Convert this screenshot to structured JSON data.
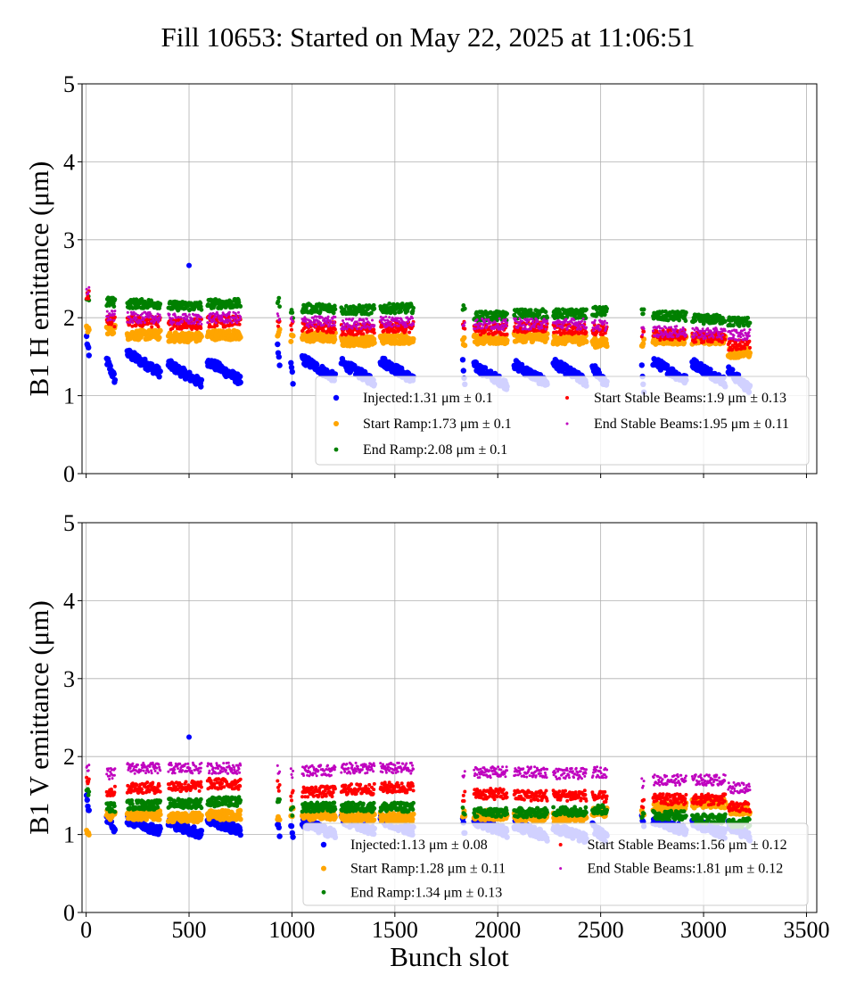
{
  "title": "Fill 10653: Started on May 22, 2025 at 11:06:51",
  "chart_data": [
    {
      "type": "scatter",
      "ylabel": "B1 H emittance (μm)",
      "xlabel": "",
      "xlim": [
        -20,
        3550
      ],
      "ylim": [
        0,
        5
      ],
      "xticks": [
        0,
        500,
        1000,
        1500,
        2000,
        2500,
        3000,
        3500
      ],
      "yticks": [
        0,
        1,
        2,
        3,
        4,
        5
      ],
      "grid": true,
      "legend_position": "lower-right",
      "series": [
        {
          "name": "Injected",
          "label": "Injected:1.31 μm ± 0.1",
          "color": "#0000ff",
          "values_by_train": [
            1.62,
            1.33,
            1.42,
            1.28,
            1.32,
            1.48,
            1.3,
            1.35,
            1.3,
            1.33,
            1.28,
            1.26,
            1.28,
            1.3,
            1.25,
            1.22,
            1.32,
            1.3,
            1.2
          ]
        },
        {
          "name": "Start Ramp",
          "label": "Start Ramp:1.73 μm ± 0.1",
          "color": "#ffa500",
          "values_by_train": [
            1.85,
            1.85,
            1.78,
            1.75,
            1.78,
            1.8,
            1.72,
            1.75,
            1.7,
            1.73,
            1.7,
            1.72,
            1.75,
            1.72,
            1.68,
            1.68,
            1.72,
            1.72,
            1.55
          ]
        },
        {
          "name": "End Ramp",
          "label": "End Ramp:2.08 μm ± 0.1",
          "color": "#008000",
          "values_by_train": [
            2.25,
            2.2,
            2.18,
            2.15,
            2.18,
            2.2,
            2.05,
            2.12,
            2.1,
            2.12,
            2.1,
            2.02,
            2.05,
            2.05,
            2.08,
            2.1,
            2.02,
            1.98,
            1.95
          ]
        },
        {
          "name": "Start Stable Beams",
          "label": "Start Stable Beams:1.9 μm ± 0.13",
          "color": "#ff0000",
          "values_by_train": [
            2.3,
            1.95,
            1.95,
            1.92,
            1.95,
            1.95,
            1.88,
            1.88,
            1.85,
            1.88,
            1.88,
            1.85,
            1.88,
            1.85,
            1.85,
            1.8,
            1.78,
            1.75,
            1.65
          ]
        },
        {
          "name": "End Stable Beams",
          "label": "End Stable Beams:1.95 μm ± 0.11",
          "color": "#bf00bf",
          "values_by_train": [
            2.35,
            2.02,
            2.0,
            1.98,
            2.0,
            2.0,
            1.95,
            1.95,
            1.92,
            1.95,
            1.95,
            1.92,
            1.92,
            1.92,
            1.9,
            1.85,
            1.82,
            1.8,
            1.78
          ]
        }
      ]
    },
    {
      "type": "scatter",
      "ylabel": "B1 V emittance (μm)",
      "xlabel": "Bunch slot",
      "xlim": [
        -20,
        3550
      ],
      "ylim": [
        0,
        5
      ],
      "xticks": [
        0,
        500,
        1000,
        1500,
        2000,
        2500,
        3000,
        3500
      ],
      "yticks": [
        0,
        1,
        2,
        3,
        4,
        5
      ],
      "grid": true,
      "legend_position": "lower-right",
      "series": [
        {
          "name": "Injected",
          "label": "Injected:1.13 μm ± 0.08",
          "color": "#0000ff",
          "values_by_train": [
            1.4,
            1.15,
            1.12,
            1.08,
            1.12,
            1.1,
            1.05,
            1.08,
            1.12,
            1.12,
            1.1,
            1.1,
            1.05,
            1.02,
            1.02,
            1.15,
            1.12,
            1.08,
            1.05
          ]
        },
        {
          "name": "Start Ramp",
          "label": "Start Ramp:1.28 μm ± 0.11",
          "color": "#ffa500",
          "values_by_train": [
            1.05,
            1.25,
            1.25,
            1.22,
            1.25,
            1.22,
            1.28,
            1.25,
            1.22,
            1.22,
            1.28,
            1.25,
            1.22,
            1.22,
            1.28,
            1.3,
            1.35,
            1.4,
            1.32
          ]
        },
        {
          "name": "End Ramp",
          "label": "End Ramp:1.34 μm ± 0.13",
          "color": "#008000",
          "values_by_train": [
            1.55,
            1.35,
            1.38,
            1.4,
            1.42,
            1.4,
            1.3,
            1.35,
            1.35,
            1.35,
            1.3,
            1.28,
            1.28,
            1.3,
            1.32,
            1.25,
            1.25,
            1.2,
            1.15
          ]
        },
        {
          "name": "Start Stable Beams",
          "label": "Start Stable Beams:1.56 μm ± 0.12",
          "color": "#ff0000",
          "values_by_train": [
            1.7,
            1.55,
            1.6,
            1.62,
            1.65,
            1.62,
            1.5,
            1.55,
            1.58,
            1.6,
            1.5,
            1.52,
            1.5,
            1.5,
            1.48,
            1.4,
            1.45,
            1.45,
            1.35
          ]
        },
        {
          "name": "End Stable Beams",
          "label": "End Stable Beams:1.81 μm ± 0.12",
          "color": "#bf00bf",
          "values_by_train": [
            1.88,
            1.78,
            1.85,
            1.85,
            1.85,
            1.82,
            1.8,
            1.82,
            1.85,
            1.85,
            1.75,
            1.8,
            1.8,
            1.78,
            1.8,
            1.65,
            1.7,
            1.7,
            1.6
          ]
        }
      ]
    }
  ],
  "bunch_trains": [
    {
      "start": 2,
      "end": 14
    },
    {
      "start": 100,
      "end": 140
    },
    {
      "start": 200,
      "end": 360
    },
    {
      "start": 400,
      "end": 560
    },
    {
      "start": 590,
      "end": 750
    },
    {
      "start": 930,
      "end": 940
    },
    {
      "start": 995,
      "end": 1005
    },
    {
      "start": 1050,
      "end": 1210
    },
    {
      "start": 1240,
      "end": 1400
    },
    {
      "start": 1430,
      "end": 1590
    },
    {
      "start": 1830,
      "end": 1840
    },
    {
      "start": 1885,
      "end": 2045
    },
    {
      "start": 2080,
      "end": 2240
    },
    {
      "start": 2270,
      "end": 2430
    },
    {
      "start": 2460,
      "end": 2530
    },
    {
      "start": 2700,
      "end": 2710
    },
    {
      "start": 2755,
      "end": 2915
    },
    {
      "start": 2945,
      "end": 3105
    },
    {
      "start": 3120,
      "end": 3225
    }
  ],
  "outliers": [
    {
      "panel": 0,
      "series": "Injected",
      "x": 500,
      "y": 2.67
    },
    {
      "panel": 1,
      "series": "Injected",
      "x": 500,
      "y": 2.25
    }
  ]
}
